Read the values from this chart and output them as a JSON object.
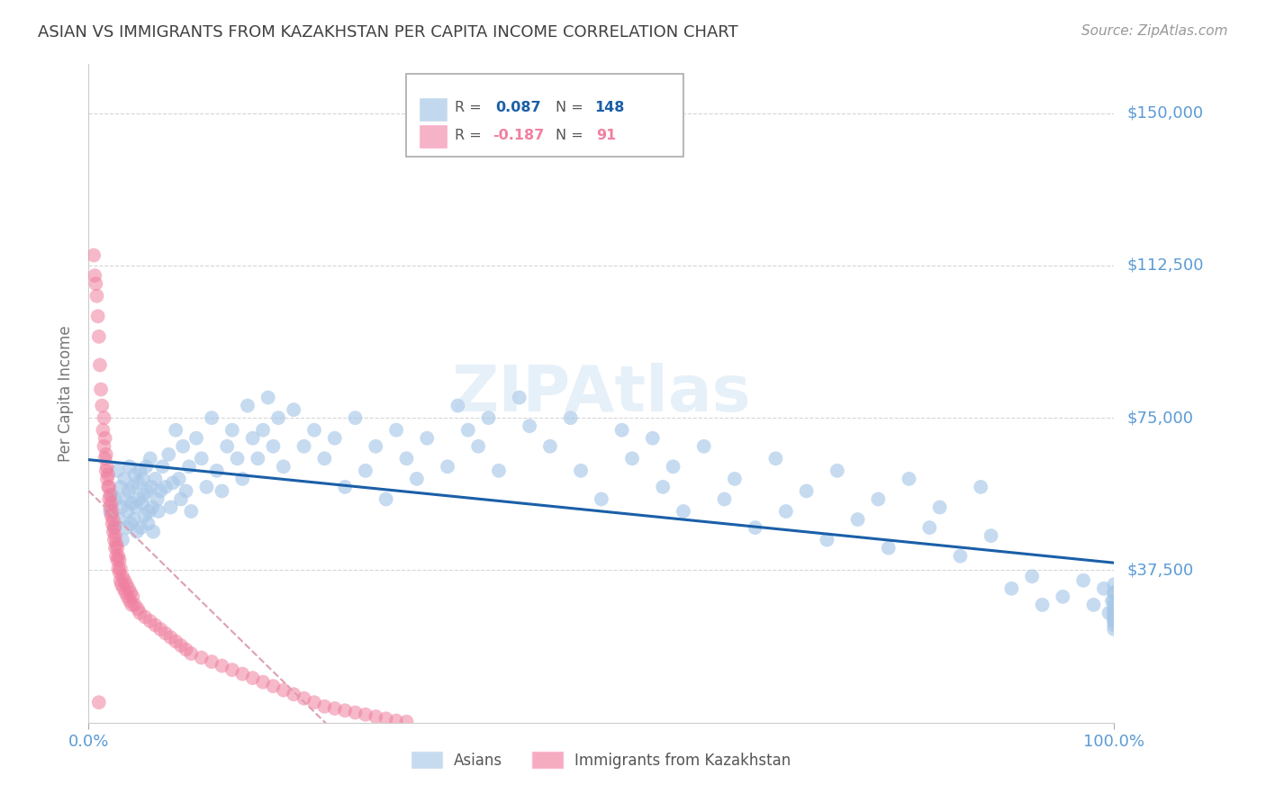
{
  "title": "ASIAN VS IMMIGRANTS FROM KAZAKHSTAN PER CAPITA INCOME CORRELATION CHART",
  "source": "Source: ZipAtlas.com",
  "ylabel": "Per Capita Income",
  "ytick_labels": [
    "$37,500",
    "$75,000",
    "$112,500",
    "$150,000"
  ],
  "ytick_values": [
    37500,
    75000,
    112500,
    150000
  ],
  "ymin": 0,
  "ymax": 162000,
  "xmin": 0.0,
  "xmax": 100.0,
  "watermark": "ZIPAtlas",
  "blue_dot_color": "#a8c8e8",
  "pink_dot_color": "#f080a0",
  "trend_blue_color": "#1a5fa8",
  "trend_pink_color": "#dda0b0",
  "grid_color": "#cccccc",
  "axis_tick_color": "#5b9bd5",
  "title_color": "#404040",
  "source_color": "#999999",
  "background_color": "#ffffff",
  "asian_label": "Asians",
  "kaz_label": "Immigrants from Kazakhstan",
  "asian_x": [
    2.1,
    2.3,
    2.5,
    2.6,
    2.8,
    3.0,
    3.1,
    3.2,
    3.3,
    3.5,
    3.6,
    3.7,
    3.8,
    3.9,
    4.0,
    4.1,
    4.2,
    4.3,
    4.4,
    4.5,
    4.6,
    4.7,
    4.8,
    4.9,
    5.0,
    5.1,
    5.2,
    5.3,
    5.4,
    5.5,
    5.6,
    5.7,
    5.8,
    5.9,
    6.0,
    6.1,
    6.2,
    6.3,
    6.5,
    6.7,
    6.8,
    7.0,
    7.2,
    7.5,
    7.8,
    8.0,
    8.2,
    8.5,
    8.8,
    9.0,
    9.2,
    9.5,
    9.8,
    10.0,
    10.5,
    11.0,
    11.5,
    12.0,
    12.5,
    13.0,
    13.5,
    14.0,
    14.5,
    15.0,
    15.5,
    16.0,
    16.5,
    17.0,
    17.5,
    18.0,
    18.5,
    19.0,
    20.0,
    21.0,
    22.0,
    23.0,
    24.0,
    25.0,
    26.0,
    27.0,
    28.0,
    29.0,
    30.0,
    31.0,
    32.0,
    33.0,
    35.0,
    36.0,
    37.0,
    38.0,
    39.0,
    40.0,
    42.0,
    43.0,
    45.0,
    47.0,
    48.0,
    50.0,
    52.0,
    53.0,
    55.0,
    56.0,
    57.0,
    58.0,
    60.0,
    62.0,
    63.0,
    65.0,
    67.0,
    68.0,
    70.0,
    72.0,
    73.0,
    75.0,
    77.0,
    78.0,
    80.0,
    82.0,
    83.0,
    85.0,
    87.0,
    88.0,
    90.0,
    92.0,
    93.0,
    95.0,
    97.0,
    98.0,
    99.0,
    99.5,
    99.8,
    100.0,
    100.0,
    100.0,
    100.0,
    100.0,
    100.0,
    100.0,
    100.0,
    100.0,
    100.0,
    100.0,
    100.0,
    100.0,
    100.0,
    100.0
  ],
  "asian_y": [
    52000,
    56000,
    48000,
    55000,
    62000,
    50000,
    58000,
    53000,
    45000,
    60000,
    55000,
    48000,
    52000,
    57000,
    63000,
    49000,
    54000,
    58000,
    50000,
    61000,
    53000,
    47000,
    59000,
    55000,
    62000,
    48000,
    54000,
    60000,
    56000,
    51000,
    63000,
    57000,
    49000,
    52000,
    65000,
    58000,
    53000,
    47000,
    60000,
    55000,
    52000,
    57000,
    63000,
    58000,
    66000,
    53000,
    59000,
    72000,
    60000,
    55000,
    68000,
    57000,
    63000,
    52000,
    70000,
    65000,
    58000,
    75000,
    62000,
    57000,
    68000,
    72000,
    65000,
    60000,
    78000,
    70000,
    65000,
    72000,
    80000,
    68000,
    75000,
    63000,
    77000,
    68000,
    72000,
    65000,
    70000,
    58000,
    75000,
    62000,
    68000,
    55000,
    72000,
    65000,
    60000,
    70000,
    63000,
    78000,
    72000,
    68000,
    75000,
    62000,
    80000,
    73000,
    68000,
    75000,
    62000,
    55000,
    72000,
    65000,
    70000,
    58000,
    63000,
    52000,
    68000,
    55000,
    60000,
    48000,
    65000,
    52000,
    57000,
    45000,
    62000,
    50000,
    55000,
    43000,
    60000,
    48000,
    53000,
    41000,
    58000,
    46000,
    33000,
    36000,
    29000,
    31000,
    35000,
    29000,
    33000,
    27000,
    30000,
    28000,
    32000,
    26000,
    29000,
    24000,
    27000,
    25000,
    32000,
    34000,
    27000,
    25000,
    30000,
    28000,
    26000,
    23000
  ],
  "kaz_x": [
    0.5,
    0.6,
    0.7,
    0.8,
    0.9,
    1.0,
    1.1,
    1.2,
    1.3,
    1.4,
    1.5,
    1.5,
    1.6,
    1.6,
    1.7,
    1.7,
    1.8,
    1.8,
    1.9,
    1.9,
    2.0,
    2.0,
    2.1,
    2.1,
    2.2,
    2.2,
    2.3,
    2.3,
    2.4,
    2.4,
    2.5,
    2.5,
    2.6,
    2.6,
    2.7,
    2.7,
    2.8,
    2.8,
    2.9,
    2.9,
    3.0,
    3.0,
    3.1,
    3.1,
    3.2,
    3.3,
    3.4,
    3.5,
    3.6,
    3.7,
    3.8,
    3.9,
    4.0,
    4.1,
    4.2,
    4.3,
    4.5,
    4.8,
    5.0,
    5.5,
    6.0,
    6.5,
    7.0,
    7.5,
    8.0,
    8.5,
    9.0,
    9.5,
    10.0,
    11.0,
    12.0,
    13.0,
    14.0,
    15.0,
    16.0,
    17.0,
    18.0,
    19.0,
    20.0,
    21.0,
    22.0,
    23.0,
    24.0,
    25.0,
    26.0,
    27.0,
    28.0,
    29.0,
    30.0,
    31.0,
    1.0
  ],
  "kaz_y": [
    115000,
    110000,
    108000,
    105000,
    100000,
    95000,
    88000,
    82000,
    78000,
    72000,
    68000,
    75000,
    65000,
    70000,
    62000,
    66000,
    60000,
    63000,
    58000,
    61000,
    55000,
    58000,
    53000,
    56000,
    51000,
    54000,
    49000,
    52000,
    47000,
    50000,
    45000,
    48000,
    43000,
    46000,
    41000,
    44000,
    40000,
    43000,
    38000,
    41000,
    37000,
    40000,
    35000,
    38000,
    34000,
    36000,
    33000,
    35000,
    32000,
    34000,
    31000,
    33000,
    30000,
    32000,
    29000,
    31000,
    29000,
    28000,
    27000,
    26000,
    25000,
    24000,
    23000,
    22000,
    21000,
    20000,
    19000,
    18000,
    17000,
    16000,
    15000,
    14000,
    13000,
    12000,
    11000,
    10000,
    9000,
    8000,
    7000,
    6000,
    5000,
    4000,
    3500,
    3000,
    2500,
    2000,
    1500,
    1000,
    500,
    250,
    5000
  ]
}
